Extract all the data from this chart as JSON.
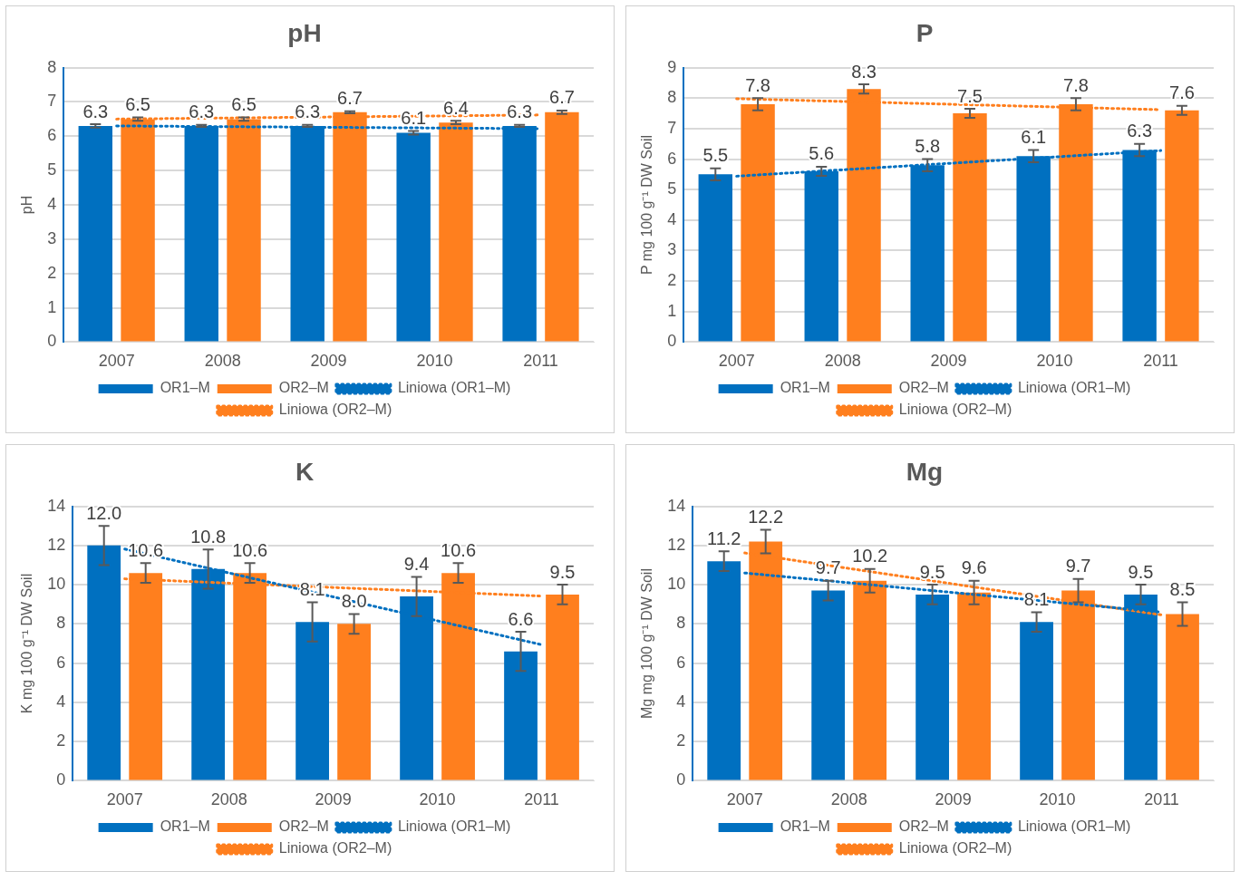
{
  "chart_data": [
    {
      "type": "bar",
      "title": "pH",
      "ylabel": "pH",
      "categories": [
        "2007",
        "2008",
        "2009",
        "2010",
        "2011"
      ],
      "ylim": [
        0,
        8
      ],
      "yticks": [
        0,
        1,
        2,
        3,
        4,
        5,
        6,
        7,
        8
      ],
      "grid": "y",
      "legend": "bottom",
      "series": [
        {
          "name": "OR1–M",
          "color": "#0070c0",
          "values": [
            6.3,
            6.3,
            6.3,
            6.1,
            6.3
          ],
          "errors": [
            0.05,
            0.03,
            0.03,
            0.05,
            0.03
          ],
          "value_labels": [
            "6.3",
            "6.3",
            "6.3",
            "6.1",
            "6.3"
          ]
        },
        {
          "name": "OR2–M",
          "color": "#ff7f1e",
          "values": [
            6.5,
            6.5,
            6.7,
            6.4,
            6.7
          ],
          "errors": [
            0.05,
            0.05,
            0.03,
            0.05,
            0.05
          ],
          "value_labels": [
            "6.5",
            "6.5",
            "6.7",
            "6.4",
            "6.7"
          ]
        },
        {
          "name": "Liniowa (OR1–M)",
          "type": "line",
          "color": "#0070c0",
          "line_style": "dotted",
          "marker": "none",
          "values": [
            6.3,
            6.28,
            6.26,
            6.24,
            6.22
          ]
        },
        {
          "name": "Liniowa (OR2–M)",
          "type": "line",
          "color": "#ff7f1e",
          "line_style": "dotted",
          "marker": "none",
          "values": [
            6.5,
            6.53,
            6.56,
            6.59,
            6.62
          ]
        }
      ]
    },
    {
      "type": "bar",
      "title": "P",
      "ylabel": "P mg 100 g⁻¹ DW Soil",
      "categories": [
        "2007",
        "2008",
        "2009",
        "2010",
        "2011"
      ],
      "ylim": [
        0,
        9
      ],
      "yticks": [
        0,
        1,
        2,
        3,
        4,
        5,
        6,
        7,
        8,
        9
      ],
      "grid": "y",
      "legend": "bottom",
      "series": [
        {
          "name": "OR1–M",
          "color": "#0070c0",
          "values": [
            5.5,
            5.6,
            5.8,
            6.1,
            6.3
          ],
          "errors": [
            0.2,
            0.15,
            0.2,
            0.2,
            0.2
          ],
          "value_labels": [
            "5.5",
            "5.6",
            "5.8",
            "6.1",
            "6.3"
          ]
        },
        {
          "name": "OR2–M",
          "color": "#ff7f1e",
          "values": [
            7.8,
            8.3,
            7.5,
            7.8,
            7.6
          ],
          "errors": [
            0.2,
            0.15,
            0.15,
            0.2,
            0.15
          ],
          "value_labels": [
            "7.8",
            "8.3",
            "7.5",
            "7.8",
            "7.6"
          ]
        },
        {
          "name": "Liniowa (OR1–M)",
          "type": "line",
          "color": "#0070c0",
          "line_style": "dotted",
          "marker": "none",
          "values": [
            5.44,
            5.65,
            5.86,
            6.07,
            6.28
          ]
        },
        {
          "name": "Liniowa (OR2–M)",
          "type": "line",
          "color": "#ff7f1e",
          "line_style": "dotted",
          "marker": "none",
          "values": [
            7.98,
            7.89,
            7.8,
            7.71,
            7.62
          ]
        }
      ]
    },
    {
      "type": "bar",
      "title": "K",
      "ylabel": "K mg 100 g⁻¹ DW Soil",
      "categories": [
        "2007",
        "2008",
        "2009",
        "2010",
        "2011"
      ],
      "ylim": [
        0,
        14
      ],
      "yticks": [
        0,
        2,
        4,
        6,
        8,
        10,
        12,
        14
      ],
      "grid": "y",
      "legend": "bottom",
      "series": [
        {
          "name": "OR1–M",
          "color": "#0070c0",
          "values": [
            12.0,
            10.8,
            8.1,
            9.4,
            6.6
          ],
          "errors": [
            1.0,
            1.0,
            1.0,
            1.0,
            1.0
          ],
          "value_labels": [
            "12.0",
            "10.8",
            "8.1",
            "9.4",
            "6.6"
          ]
        },
        {
          "name": "OR2–M",
          "color": "#ff7f1e",
          "values": [
            10.6,
            10.6,
            8.0,
            10.6,
            9.5
          ],
          "errors": [
            0.5,
            0.5,
            0.5,
            0.5,
            0.5
          ],
          "value_labels": [
            "10.6",
            "10.6",
            "8.0",
            "10.6",
            "9.5"
          ]
        },
        {
          "name": "Liniowa (OR1–M)",
          "type": "line",
          "color": "#0070c0",
          "line_style": "dotted",
          "marker": "none",
          "values": [
            11.82,
            10.6,
            9.38,
            8.16,
            6.94
          ]
        },
        {
          "name": "Liniowa (OR2–M)",
          "type": "line",
          "color": "#ff7f1e",
          "line_style": "dotted",
          "marker": "none",
          "values": [
            10.3,
            10.08,
            9.86,
            9.64,
            9.42
          ]
        }
      ]
    },
    {
      "type": "bar",
      "title": "Mg",
      "ylabel": "Mg mg 100 g⁻¹ DW Soil",
      "categories": [
        "2007",
        "2008",
        "2009",
        "2010",
        "2011"
      ],
      "ylim": [
        0,
        14
      ],
      "yticks": [
        0,
        2,
        4,
        6,
        8,
        10,
        12,
        14
      ],
      "grid": "y",
      "legend": "bottom",
      "series": [
        {
          "name": "OR1–M",
          "color": "#0070c0",
          "values": [
            11.2,
            9.7,
            9.5,
            8.1,
            9.5
          ],
          "errors": [
            0.5,
            0.5,
            0.5,
            0.5,
            0.5
          ],
          "value_labels": [
            "11.2",
            "9.7",
            "9.5",
            "8.1",
            "9.5"
          ]
        },
        {
          "name": "OR2–M",
          "color": "#ff7f1e",
          "values": [
            12.2,
            10.2,
            9.6,
            9.7,
            8.5
          ],
          "errors": [
            0.6,
            0.6,
            0.6,
            0.6,
            0.6
          ],
          "value_labels": [
            "12.2",
            "10.2",
            "9.6",
            "9.7",
            "8.5"
          ]
        },
        {
          "name": "Liniowa (OR1–M)",
          "type": "line",
          "color": "#0070c0",
          "line_style": "dotted",
          "marker": "none",
          "values": [
            10.6,
            10.1,
            9.6,
            9.1,
            8.6
          ]
        },
        {
          "name": "Liniowa (OR2–M)",
          "type": "line",
          "color": "#ff7f1e",
          "line_style": "dotted",
          "marker": "none",
          "values": [
            11.62,
            10.83,
            10.04,
            9.25,
            8.46
          ]
        }
      ]
    }
  ]
}
